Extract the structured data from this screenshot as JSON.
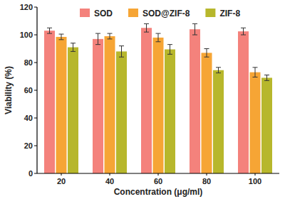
{
  "chart_data": {
    "type": "bar",
    "x_label": "Concentration (μg/ml)",
    "y_label": "Viability (%)",
    "categories": [
      "20",
      "40",
      "60",
      "80",
      "100"
    ],
    "series": [
      {
        "name": "SOD",
        "color": "#f4827c",
        "values": [
          103,
          97,
          105,
          104,
          102.5
        ],
        "errors": [
          2,
          4,
          3,
          4,
          2.5
        ]
      },
      {
        "name": "SOD@ZIF-8",
        "color": "#f6a535",
        "values": [
          98.5,
          99,
          98,
          87,
          73
        ],
        "errors": [
          2,
          2,
          3,
          3,
          3.5
        ]
      },
      {
        "name": "ZIF-8",
        "color": "#b7b72c",
        "values": [
          91,
          88,
          89.5,
          74.5,
          69
        ],
        "errors": [
          3,
          4,
          3.5,
          2,
          2
        ]
      }
    ],
    "ylim": [
      0,
      120
    ],
    "yticks": [
      0,
      20,
      40,
      60,
      80,
      100,
      120
    ],
    "legend": "top",
    "grid": false
  }
}
